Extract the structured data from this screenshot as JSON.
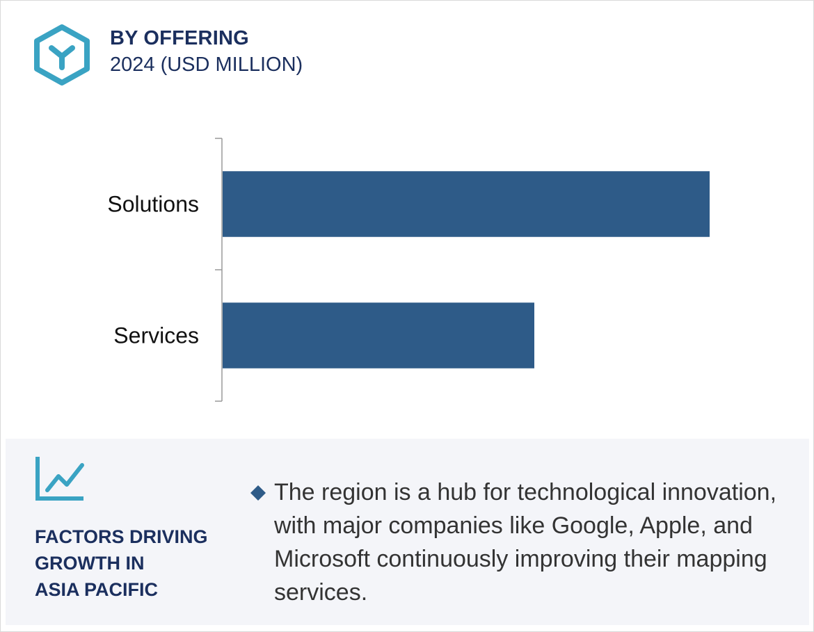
{
  "header": {
    "title": "BY OFFERING",
    "subtitle": "2024 (USD MILLION)",
    "icon": "hexagon-y-logo-icon"
  },
  "colors": {
    "bar": "#2e5b88",
    "accent": "#3aa3c3",
    "heading": "#1b2f5e",
    "axis": "#999999",
    "panel_bg": "#f4f5f9"
  },
  "chart_data": {
    "type": "bar",
    "orientation": "horizontal",
    "categories": [
      "Solutions",
      "Services"
    ],
    "values": [
      100,
      64
    ],
    "title": "BY OFFERING",
    "subtitle": "2024 (USD MILLION)",
    "xlim": [
      0,
      100
    ],
    "grid": false,
    "legend": "none"
  },
  "factors": {
    "icon": "trend-line-chart-icon",
    "label_lines": [
      "FACTORS DRIVING",
      "GROWTH IN",
      "ASIA PACIFIC"
    ],
    "bullet_icon": "diamond-bullet-icon",
    "bullet_text": "The region is a hub for technological innovation, with major companies like Google, Apple, and Microsoft continuously improving their mapping services."
  }
}
